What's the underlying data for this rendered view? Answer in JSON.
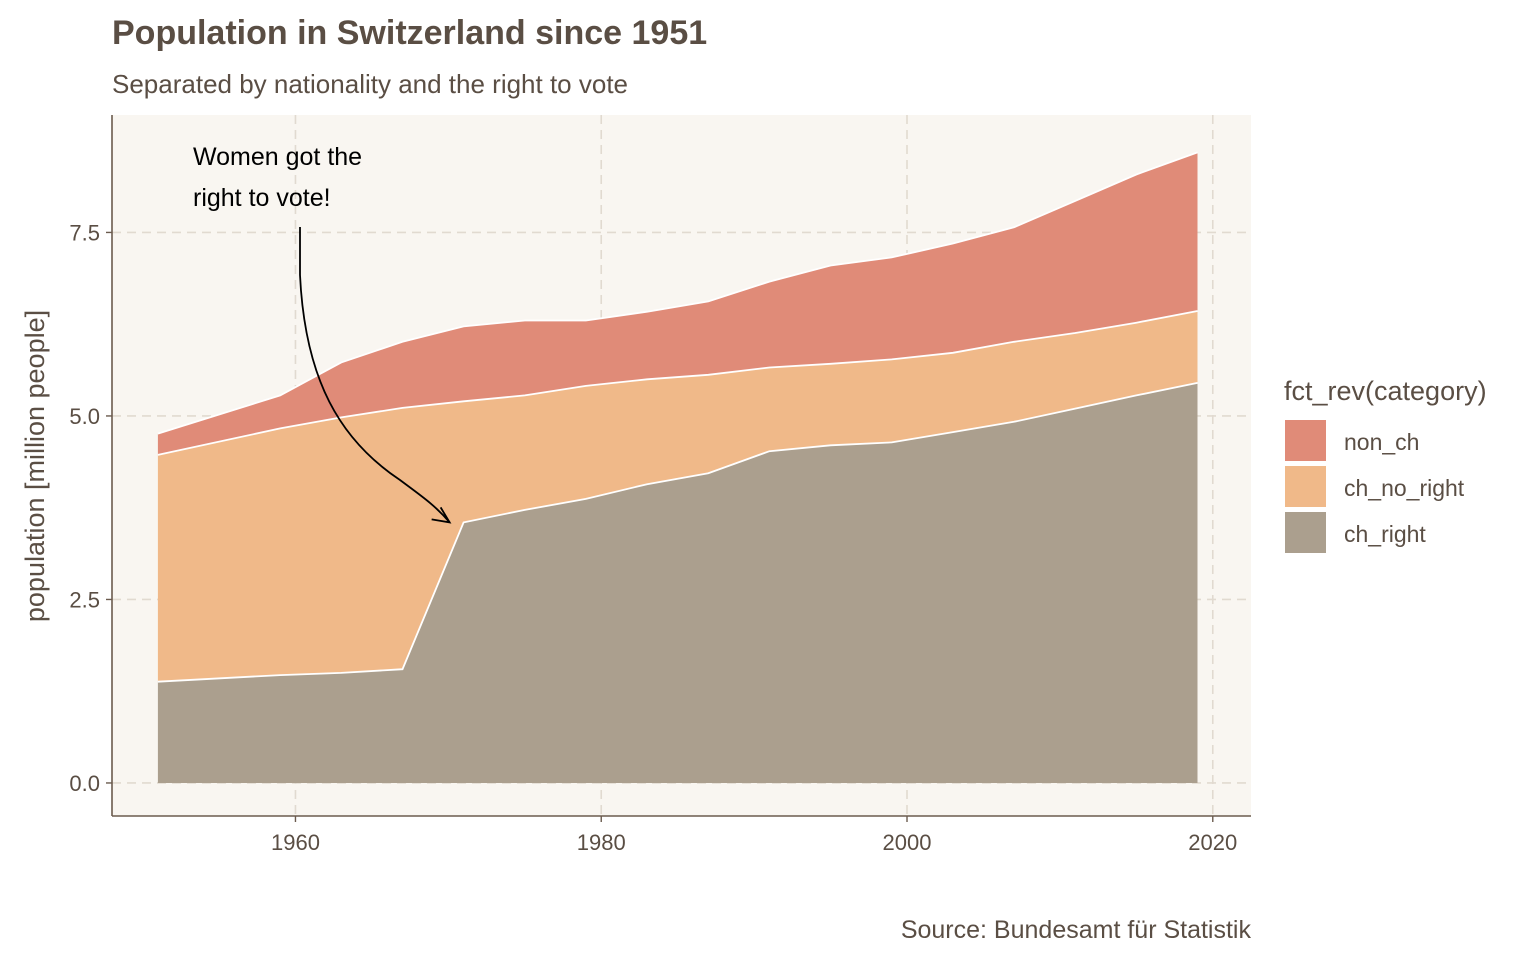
{
  "chart_data": {
    "type": "area",
    "stacked": true,
    "title": "Population in Switzerland since 1951",
    "subtitle": "Separated by nationality and the right to vote",
    "ylabel": "population [million people]",
    "xlabel": "",
    "caption": "Source: Bundesamt für Statistik",
    "annotation": {
      "lines": [
        "Women got the",
        "right to vote!"
      ],
      "arrow_to": {
        "x": 1971,
        "y": 3.55
      }
    },
    "xlim": [
      1948,
      2022.5
    ],
    "ylim": [
      -0.45,
      9.1
    ],
    "x_ticks": [
      1960,
      1980,
      2000,
      2020
    ],
    "x_tick_labels": [
      "1960",
      "1980",
      "2000",
      "2020"
    ],
    "y_ticks": [
      0,
      2.5,
      5,
      7.5
    ],
    "y_tick_labels": [
      "0.0",
      "2.5",
      "5.0",
      "7.5"
    ],
    "grid": true,
    "legend": {
      "title": "fct_rev(category)",
      "position": "right"
    },
    "x": [
      1951,
      1959,
      1963,
      1967,
      1971,
      1975,
      1979,
      1983,
      1987,
      1991,
      1995,
      1999,
      2003,
      2007,
      2011,
      2015,
      2019
    ],
    "series": [
      {
        "name": "ch_right",
        "color": "#ab9f8e",
        "values": [
          1.38,
          1.47,
          1.5,
          1.55,
          3.55,
          3.72,
          3.87,
          4.07,
          4.22,
          4.52,
          4.6,
          4.64,
          4.78,
          4.92,
          5.1,
          5.28,
          5.45
        ]
      },
      {
        "name": "ch_no_right",
        "color": "#f0b989",
        "values": [
          3.09,
          3.36,
          3.48,
          3.56,
          1.65,
          1.56,
          1.54,
          1.43,
          1.34,
          1.14,
          1.11,
          1.13,
          1.08,
          1.09,
          1.03,
          0.99,
          0.98
        ]
      },
      {
        "name": "non_ch",
        "color": "#e08b78",
        "values": [
          0.29,
          0.45,
          0.75,
          0.9,
          1.02,
          1.02,
          0.89,
          0.92,
          1.0,
          1.17,
          1.34,
          1.39,
          1.49,
          1.56,
          1.8,
          2.02,
          2.16
        ]
      }
    ]
  },
  "colors": {
    "panel_background": "#f9f6f1",
    "grid": "#e1dad0",
    "axis_line": "#6b5b4e",
    "text": "#5a4e44"
  }
}
